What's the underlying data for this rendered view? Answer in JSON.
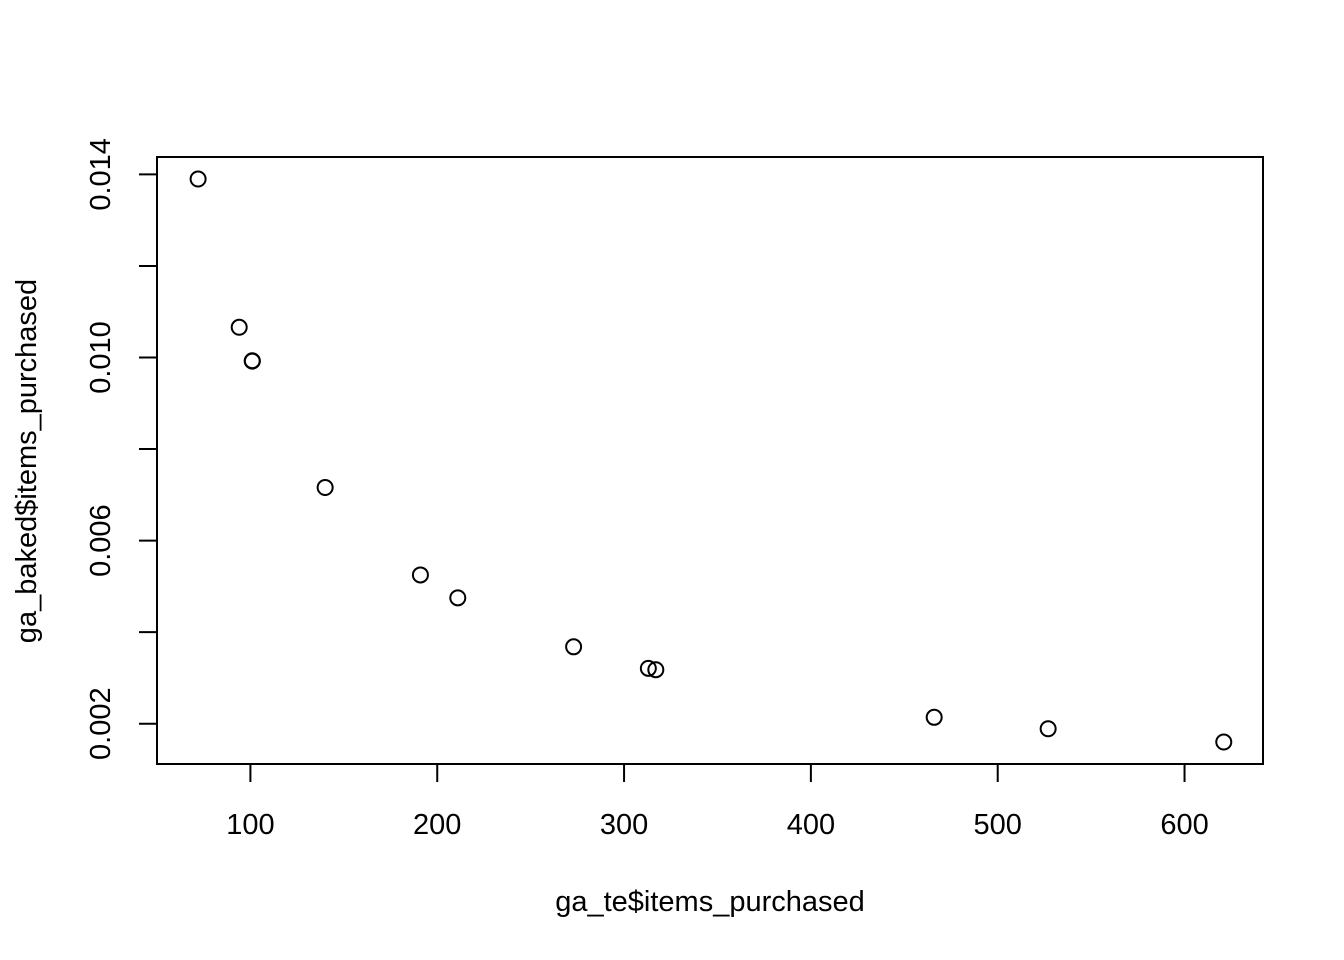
{
  "chart_data": {
    "type": "scatter",
    "title": "",
    "xlabel": "ga_te$items_purchased",
    "ylabel": "ga_baked$items_purchased",
    "xlim": [
      50,
      642
    ],
    "ylim": [
      0.00112,
      0.01438
    ],
    "x_ticks": [
      100,
      200,
      300,
      400,
      500,
      600
    ],
    "x_tick_labels": [
      "100",
      "200",
      "300",
      "400",
      "500",
      "600"
    ],
    "y_ticks": [
      0.002,
      0.004,
      0.006,
      0.008,
      0.01,
      0.012,
      0.014
    ],
    "y_tick_labels": [
      "0.002",
      "",
      "0.006",
      "",
      "0.010",
      "",
      "0.014"
    ],
    "grid": false,
    "marker": "open-circle",
    "colors": {
      "points": "#000000",
      "axes": "#000000",
      "background": "#ffffff"
    },
    "points": [
      {
        "x": 72,
        "y": 0.0139
      },
      {
        "x": 94,
        "y": 0.01066
      },
      {
        "x": 101,
        "y": 0.00993
      },
      {
        "x": 101,
        "y": 0.00992
      },
      {
        "x": 140,
        "y": 0.00716
      },
      {
        "x": 191,
        "y": 0.00525
      },
      {
        "x": 211,
        "y": 0.00475
      },
      {
        "x": 273,
        "y": 0.00368
      },
      {
        "x": 313,
        "y": 0.00321
      },
      {
        "x": 317,
        "y": 0.00318
      },
      {
        "x": 466,
        "y": 0.00214
      },
      {
        "x": 527,
        "y": 0.00189
      },
      {
        "x": 621,
        "y": 0.0016
      }
    ]
  }
}
